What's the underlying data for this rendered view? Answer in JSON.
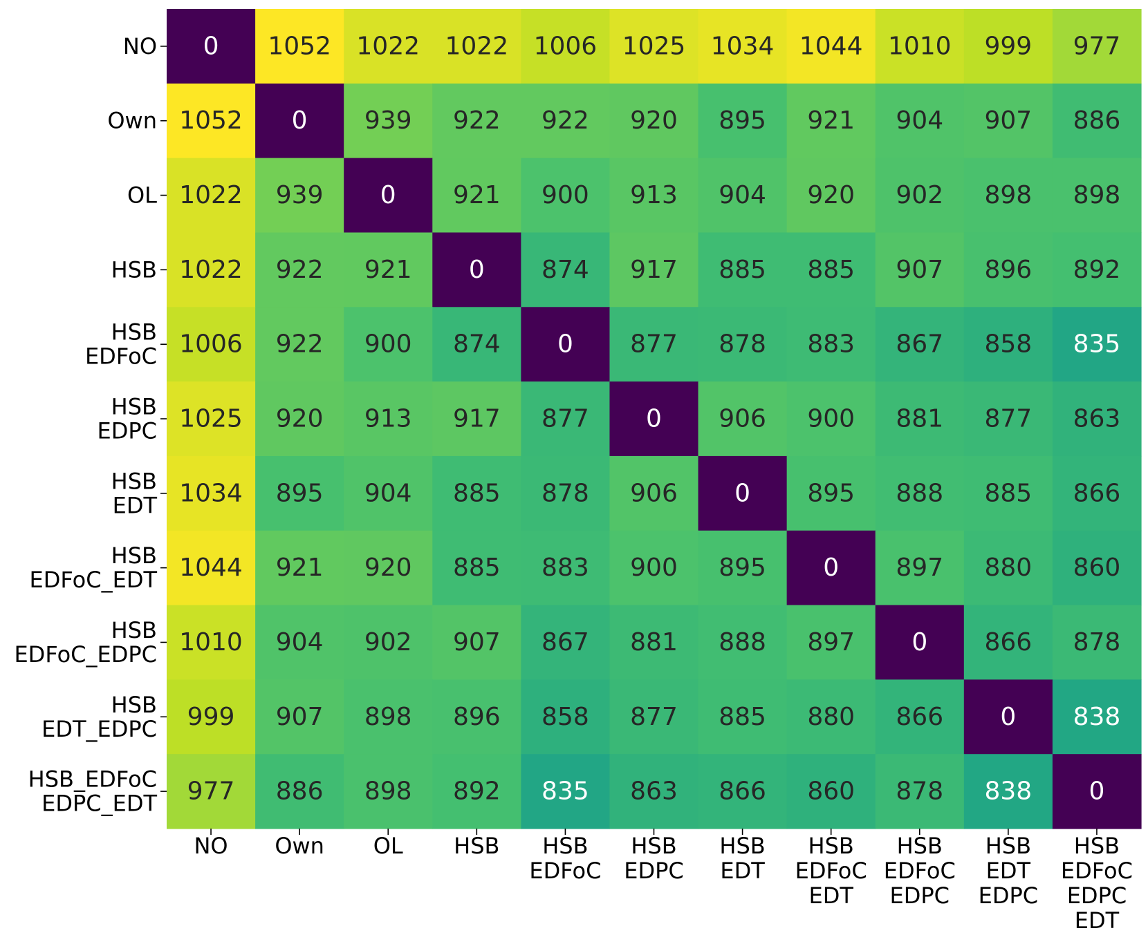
{
  "chart_data": {
    "type": "heatmap",
    "title": "",
    "xlabel": "",
    "ylabel": "",
    "colormap": "viridis",
    "vmin": 0,
    "vmax": 1052,
    "row_labels": [
      [
        "NO"
      ],
      [
        "Own"
      ],
      [
        "OL"
      ],
      [
        "HSB"
      ],
      [
        "HSB",
        "EDFoC"
      ],
      [
        "HSB",
        "EDPC"
      ],
      [
        "HSB",
        "EDT"
      ],
      [
        "HSB",
        "EDFoC_EDT"
      ],
      [
        "HSB",
        "EDFoC_EDPC"
      ],
      [
        "HSB",
        "EDT_EDPC"
      ],
      [
        "HSB_EDFoC",
        "EDPC_EDT"
      ]
    ],
    "col_labels": [
      [
        "NO"
      ],
      [
        "Own"
      ],
      [
        "OL"
      ],
      [
        "HSB"
      ],
      [
        "HSB",
        "EDFoC"
      ],
      [
        "HSB",
        "EDPC"
      ],
      [
        "HSB",
        "EDT"
      ],
      [
        "HSB",
        "EDFoC",
        "EDT"
      ],
      [
        "HSB",
        "EDFoC",
        "EDPC"
      ],
      [
        "HSB",
        "EDT",
        "EDPC"
      ],
      [
        "HSB",
        "EDFoC",
        "EDPC",
        "EDT"
      ]
    ],
    "values": [
      [
        0,
        1052,
        1022,
        1022,
        1006,
        1025,
        1034,
        1044,
        1010,
        999,
        977
      ],
      [
        1052,
        0,
        939,
        922,
        922,
        920,
        895,
        921,
        904,
        907,
        886
      ],
      [
        1022,
        939,
        0,
        921,
        900,
        913,
        904,
        920,
        902,
        898,
        898
      ],
      [
        1022,
        922,
        921,
        0,
        874,
        917,
        885,
        885,
        907,
        896,
        892
      ],
      [
        1006,
        922,
        900,
        874,
        0,
        877,
        878,
        883,
        867,
        858,
        835
      ],
      [
        1025,
        920,
        913,
        917,
        877,
        0,
        906,
        900,
        881,
        877,
        863
      ],
      [
        1034,
        895,
        904,
        885,
        878,
        906,
        0,
        895,
        888,
        885,
        866
      ],
      [
        1044,
        921,
        920,
        885,
        883,
        900,
        895,
        0,
        897,
        880,
        860
      ],
      [
        1010,
        904,
        902,
        907,
        867,
        881,
        888,
        897,
        0,
        866,
        878
      ],
      [
        999,
        907,
        898,
        896,
        858,
        877,
        885,
        880,
        866,
        0,
        838
      ],
      [
        977,
        886,
        898,
        892,
        835,
        863,
        866,
        860,
        878,
        838,
        0
      ]
    ]
  }
}
